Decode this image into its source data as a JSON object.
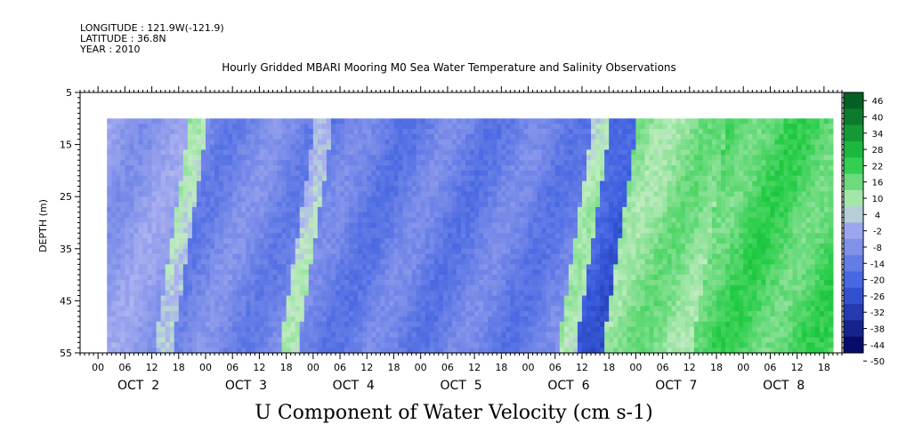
{
  "header": {
    "longitude": "LONGITUDE : 121.9W(-121.9)",
    "latitude": "LATITUDE : 36.8N",
    "year": "YEAR : 2010"
  },
  "chart_data": {
    "type": "heatmap",
    "title": "Hourly Gridded MBARI Mooring M0 Sea Water Temperature and Salinity Observations",
    "bottom_label": "U Component of Water Velocity (cm s-1)",
    "ylabel": "DEPTH (m)",
    "ylim": [
      5,
      55
    ],
    "y_inverted": true,
    "y_ticks": [
      5,
      15,
      25,
      35,
      45,
      55
    ],
    "data_depth_range": [
      10,
      55
    ],
    "x_start_hour": 2,
    "x_end_hour": 164,
    "x_domain_hours": [
      -4,
      166
    ],
    "hour_tick_labels": [
      "00",
      "06",
      "12",
      "18"
    ],
    "day_labels": [
      {
        "label": "OCT  2",
        "center_hour": 12
      },
      {
        "label": "OCT  3",
        "center_hour": 36
      },
      {
        "label": "OCT  4",
        "center_hour": 60
      },
      {
        "label": "OCT  5",
        "center_hour": 84
      },
      {
        "label": "OCT  6",
        "center_hour": 108
      },
      {
        "label": "OCT  7",
        "center_hour": 132
      },
      {
        "label": "OCT  8",
        "center_hour": 156
      }
    ],
    "colorbar": {
      "levels": [
        -50,
        -44,
        -38,
        -32,
        -26,
        -20,
        -14,
        -8,
        -2,
        4,
        10,
        16,
        22,
        28,
        34,
        40,
        46
      ],
      "labels": [
        "46",
        "40",
        "34",
        "28",
        "22",
        "16",
        "10",
        "4",
        "-2",
        "-8",
        "-14",
        "-20",
        "-26",
        "-32",
        "-38",
        "-44",
        "-50"
      ],
      "colors": {
        "min": "#00005a",
        "neg_mid": "#3a5de0",
        "neg_light": "#aab0f0",
        "zero": "#c0ecc0",
        "pos_mid": "#22cc44",
        "max": "#00501e"
      }
    },
    "dominant_pattern": [
      {
        "hour_range": [
          2,
          20
        ],
        "value": -8
      },
      {
        "hour_range": [
          20,
          24
        ],
        "value": 4
      },
      {
        "hour_range": [
          24,
          48
        ],
        "value": -14
      },
      {
        "hour_range": [
          48,
          52
        ],
        "value": 2
      },
      {
        "hour_range": [
          52,
          110
        ],
        "value": -16
      },
      {
        "hour_range": [
          110,
          114
        ],
        "value": 4
      },
      {
        "hour_range": [
          114,
          120
        ],
        "value": -26
      },
      {
        "hour_range": [
          120,
          140
        ],
        "value": 10
      },
      {
        "hour_range": [
          140,
          148
        ],
        "value": 16
      },
      {
        "hour_range": [
          148,
          164
        ],
        "value": 16
      }
    ]
  }
}
